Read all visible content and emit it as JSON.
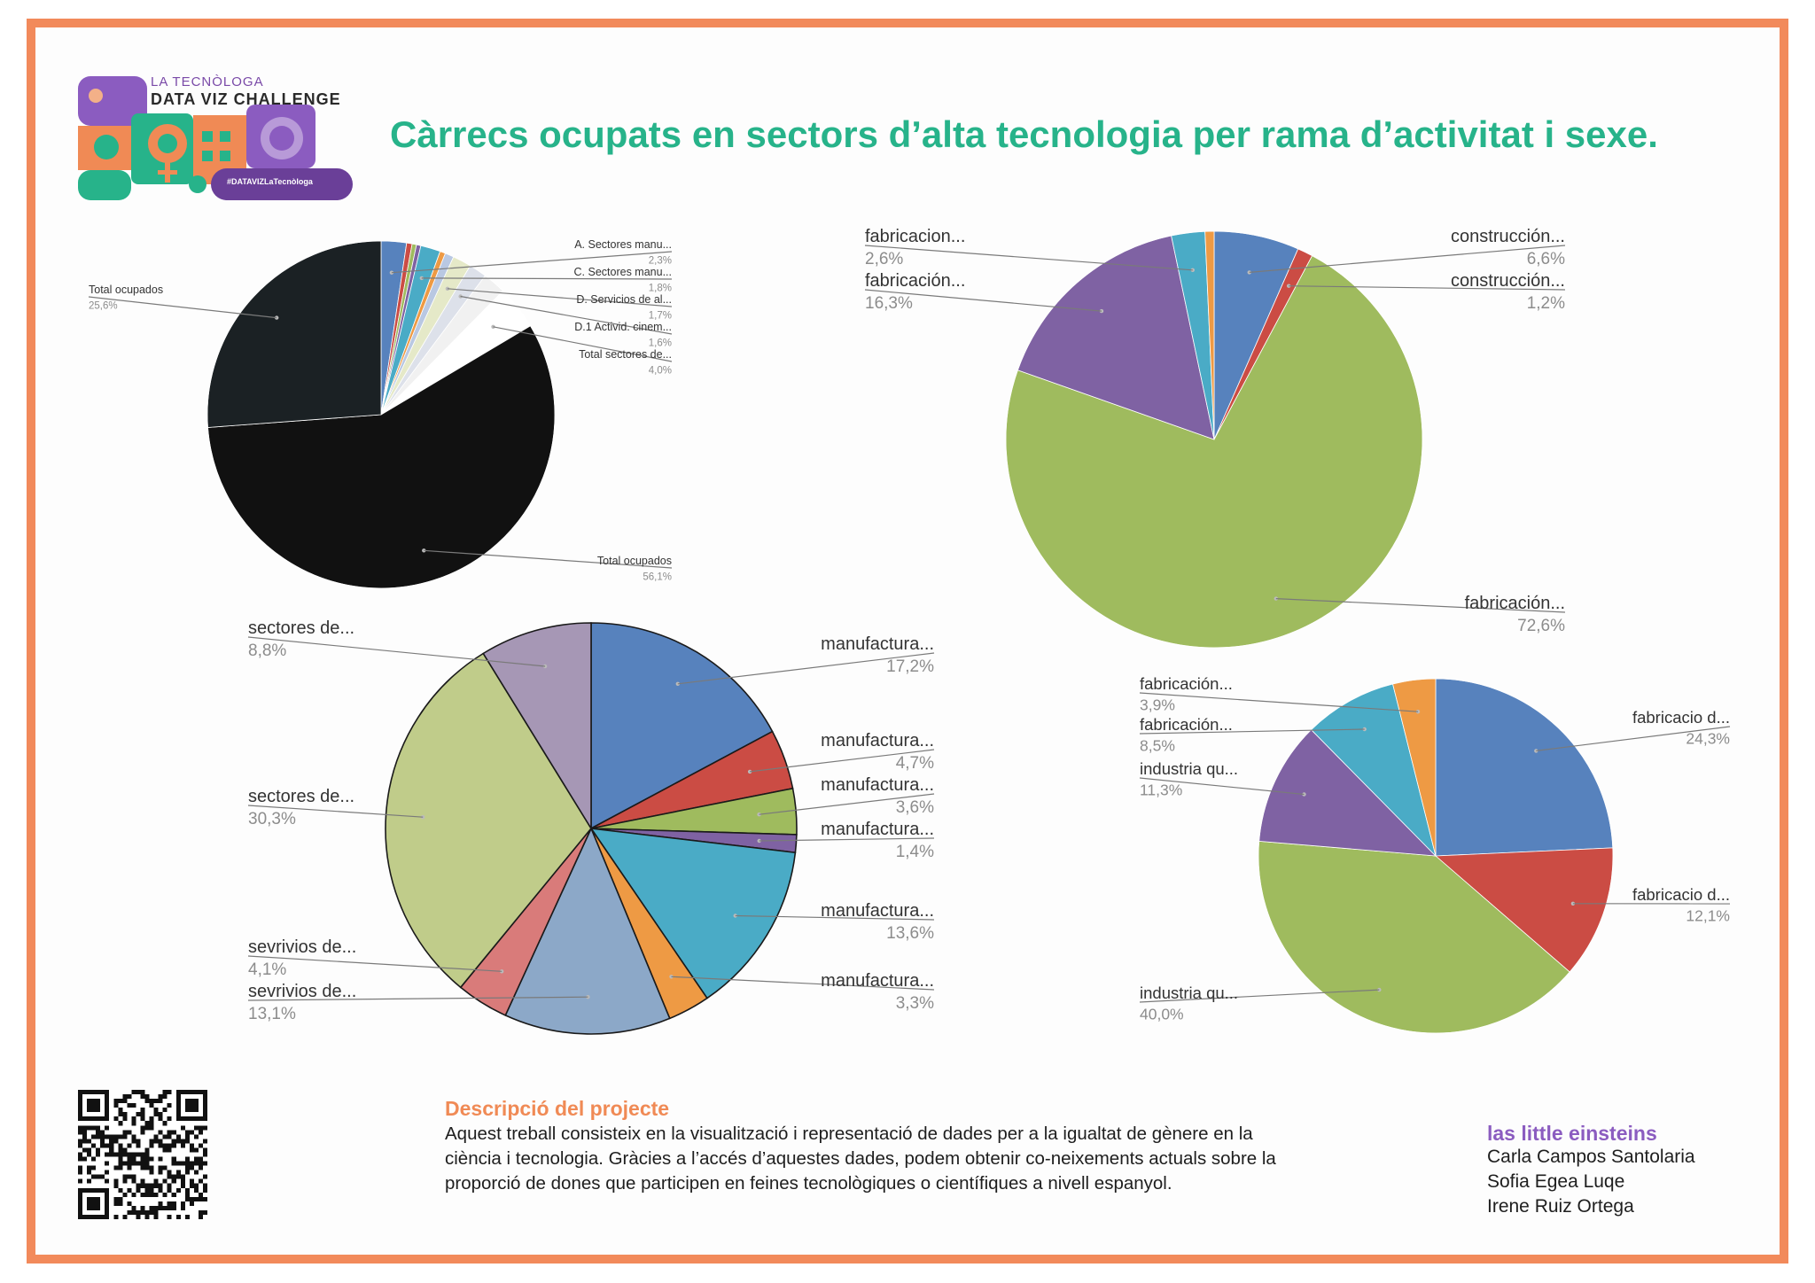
{
  "logo": {
    "line1": "La Tecnòloga",
    "line2": "Data Viz Challenge",
    "hashtag": "#DATAVIZLaTecnòloga"
  },
  "title": "Càrrecs ocupats en sectors d’alta tecnologia per rama  d’activitat i sexe.",
  "colors": {
    "blue": "#5782bd",
    "red": "#cb4c44",
    "green": "#9fbb5e",
    "purple": "#7f62a3",
    "cyan": "#4aabc6",
    "orange": "#ee9a44",
    "dark": "#1b2124",
    "black": "#111111",
    "lavender": "#a697b5",
    "lightgreen": "#c0cc8a",
    "pink": "#d97b7a",
    "steel": "#8ca8c8",
    "frame": "#f28a5b",
    "title": "#27b38a",
    "label": "#333333",
    "pct": "#8c8c8c"
  },
  "chart_data": [
    {
      "type": "pie",
      "title": "",
      "slices": [
        {
          "label": "A. Sectores manu...",
          "value": 2.3,
          "color": "#5782bd",
          "labeled": true
        },
        {
          "label": "",
          "value": 0.5,
          "color": "#cb4c44",
          "labeled": false
        },
        {
          "label": "",
          "value": 0.4,
          "color": "#9fbb5e",
          "labeled": false
        },
        {
          "label": "",
          "value": 0.4,
          "color": "#7f62a3",
          "labeled": false
        },
        {
          "label": "C. Sectores manu...",
          "value": 1.8,
          "color": "#4aabc6",
          "labeled": true
        },
        {
          "label": "",
          "value": 0.5,
          "color": "#ee9a44",
          "labeled": false
        },
        {
          "label": "",
          "value": 0.8,
          "color": "#b9c8e2",
          "labeled": false
        },
        {
          "label": "D. Servicios de al...",
          "value": 1.7,
          "color": "#e5e9c8",
          "labeled": true
        },
        {
          "label": "D.1 Activid. cinem...",
          "value": 1.6,
          "color": "#dde1ea",
          "labeled": true
        },
        {
          "label": "",
          "value": 2.1,
          "color": "#f1f1f1",
          "labeled": false
        },
        {
          "label": "Total sectores de...",
          "value": 4.0,
          "color": "#ffffff",
          "labeled": true
        },
        {
          "label": "Total ocupados",
          "value": 56.1,
          "color": "#111111",
          "labeled": true
        },
        {
          "label": "Total ocupados",
          "value": 25.6,
          "color": "#1b2124",
          "labeled": true
        }
      ]
    },
    {
      "type": "pie",
      "title": "",
      "slices": [
        {
          "label": "construcción...",
          "value": 6.6,
          "color": "#5782bd"
        },
        {
          "label": "construcción...",
          "value": 1.2,
          "color": "#cb4c44"
        },
        {
          "label": "fabricación...",
          "value": 72.6,
          "color": "#9fbb5e"
        },
        {
          "label": "fabricación...",
          "value": 16.3,
          "color": "#7f62a3"
        },
        {
          "label": "fabricacion...",
          "value": 2.6,
          "color": "#4aabc6"
        },
        {
          "label": "",
          "value": 0.7,
          "color": "#ee9a44"
        }
      ]
    },
    {
      "type": "pie",
      "title": "",
      "slices": [
        {
          "label": "manufactura...",
          "value": 17.2,
          "color": "#5782bd"
        },
        {
          "label": "manufactura...",
          "value": 4.7,
          "color": "#cb4c44"
        },
        {
          "label": "manufactura...",
          "value": 3.6,
          "color": "#9fbb5e"
        },
        {
          "label": "manufactura...",
          "value": 1.4,
          "color": "#7f62a3"
        },
        {
          "label": "manufactura...",
          "value": 13.6,
          "color": "#4aabc6"
        },
        {
          "label": "manufactura...",
          "value": 3.3,
          "color": "#ee9a44"
        },
        {
          "label": "sevrivios de...",
          "value": 13.1,
          "color": "#8ca8c8"
        },
        {
          "label": "sevrivios de...",
          "value": 4.1,
          "color": "#d97b7a"
        },
        {
          "label": "sectores de...",
          "value": 30.3,
          "color": "#c0cc8a"
        },
        {
          "label": "sectores de...",
          "value": 8.8,
          "color": "#a697b5"
        }
      ]
    },
    {
      "type": "pie",
      "title": "",
      "slices": [
        {
          "label": "fabricacio d...",
          "value": 24.3,
          "color": "#5782bd"
        },
        {
          "label": "fabricacio d...",
          "value": 12.1,
          "color": "#cb4c44"
        },
        {
          "label": "industria qu...",
          "value": 40.0,
          "color": "#9fbb5e"
        },
        {
          "label": "industria qu...",
          "value": 11.3,
          "color": "#7f62a3"
        },
        {
          "label": "fabricación...",
          "value": 8.5,
          "color": "#4aabc6"
        },
        {
          "label": "fabricación...",
          "value": 3.9,
          "color": "#ee9a44"
        }
      ]
    }
  ],
  "description": {
    "heading": "Descripció del projecte",
    "body": "Aquest treball consisteix en la visualització i representació de dades per a la igualtat de gènere en la ciència i tecnologia. Gràcies a l’accés d’aquestes dades, podem obtenir co-neixements actuals sobre la proporció de dones que participen en feines tecnològiques o científiques a nivell espanyol."
  },
  "team": {
    "name": "las little einsteins",
    "members": [
      "Carla Campos Santolaria",
      "Sofia Egea Luqe",
      "Irene Ruiz Ortega"
    ]
  }
}
